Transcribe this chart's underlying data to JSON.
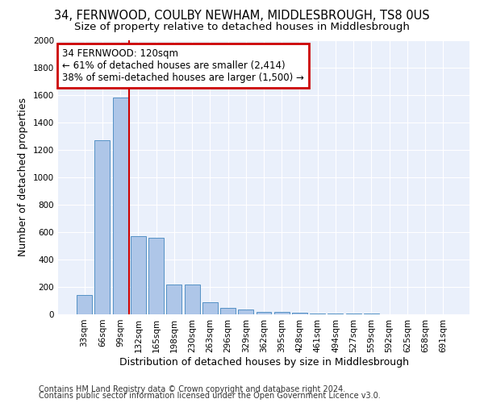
{
  "title_line1": "34, FERNWOOD, COULBY NEWHAM, MIDDLESBROUGH, TS8 0US",
  "title_line2": "Size of property relative to detached houses in Middlesbrough",
  "xlabel": "Distribution of detached houses by size in Middlesbrough",
  "ylabel": "Number of detached properties",
  "footer_line1": "Contains HM Land Registry data © Crown copyright and database right 2024.",
  "footer_line2": "Contains public sector information licensed under the Open Government Licence v3.0.",
  "annotation_line1": "34 FERNWOOD: 120sqm",
  "annotation_line2": "← 61% of detached houses are smaller (2,414)",
  "annotation_line3": "38% of semi-detached houses are larger (1,500) →",
  "bar_labels": [
    "33sqm",
    "66sqm",
    "99sqm",
    "132sqm",
    "165sqm",
    "198sqm",
    "230sqm",
    "263sqm",
    "296sqm",
    "329sqm",
    "362sqm",
    "395sqm",
    "428sqm",
    "461sqm",
    "494sqm",
    "527sqm",
    "559sqm",
    "592sqm",
    "625sqm",
    "658sqm",
    "691sqm"
  ],
  "bar_values": [
    140,
    1270,
    1580,
    570,
    560,
    220,
    220,
    90,
    50,
    35,
    20,
    15,
    12,
    8,
    5,
    4,
    3,
    2,
    2,
    2,
    1
  ],
  "bar_color": "#aec6e8",
  "bar_edge_color": "#5591c5",
  "vline_color": "#cc0000",
  "ylim": [
    0,
    2000
  ],
  "yticks": [
    0,
    200,
    400,
    600,
    800,
    1000,
    1200,
    1400,
    1600,
    1800,
    2000
  ],
  "annotation_box_color": "#cc0000",
  "bg_color": "#eaf0fb",
  "grid_color": "#ffffff",
  "title_fontsize": 10.5,
  "subtitle_fontsize": 9.5,
  "axis_label_fontsize": 9,
  "tick_fontsize": 7.5,
  "footer_fontsize": 7.0,
  "annotation_fontsize": 8.5
}
